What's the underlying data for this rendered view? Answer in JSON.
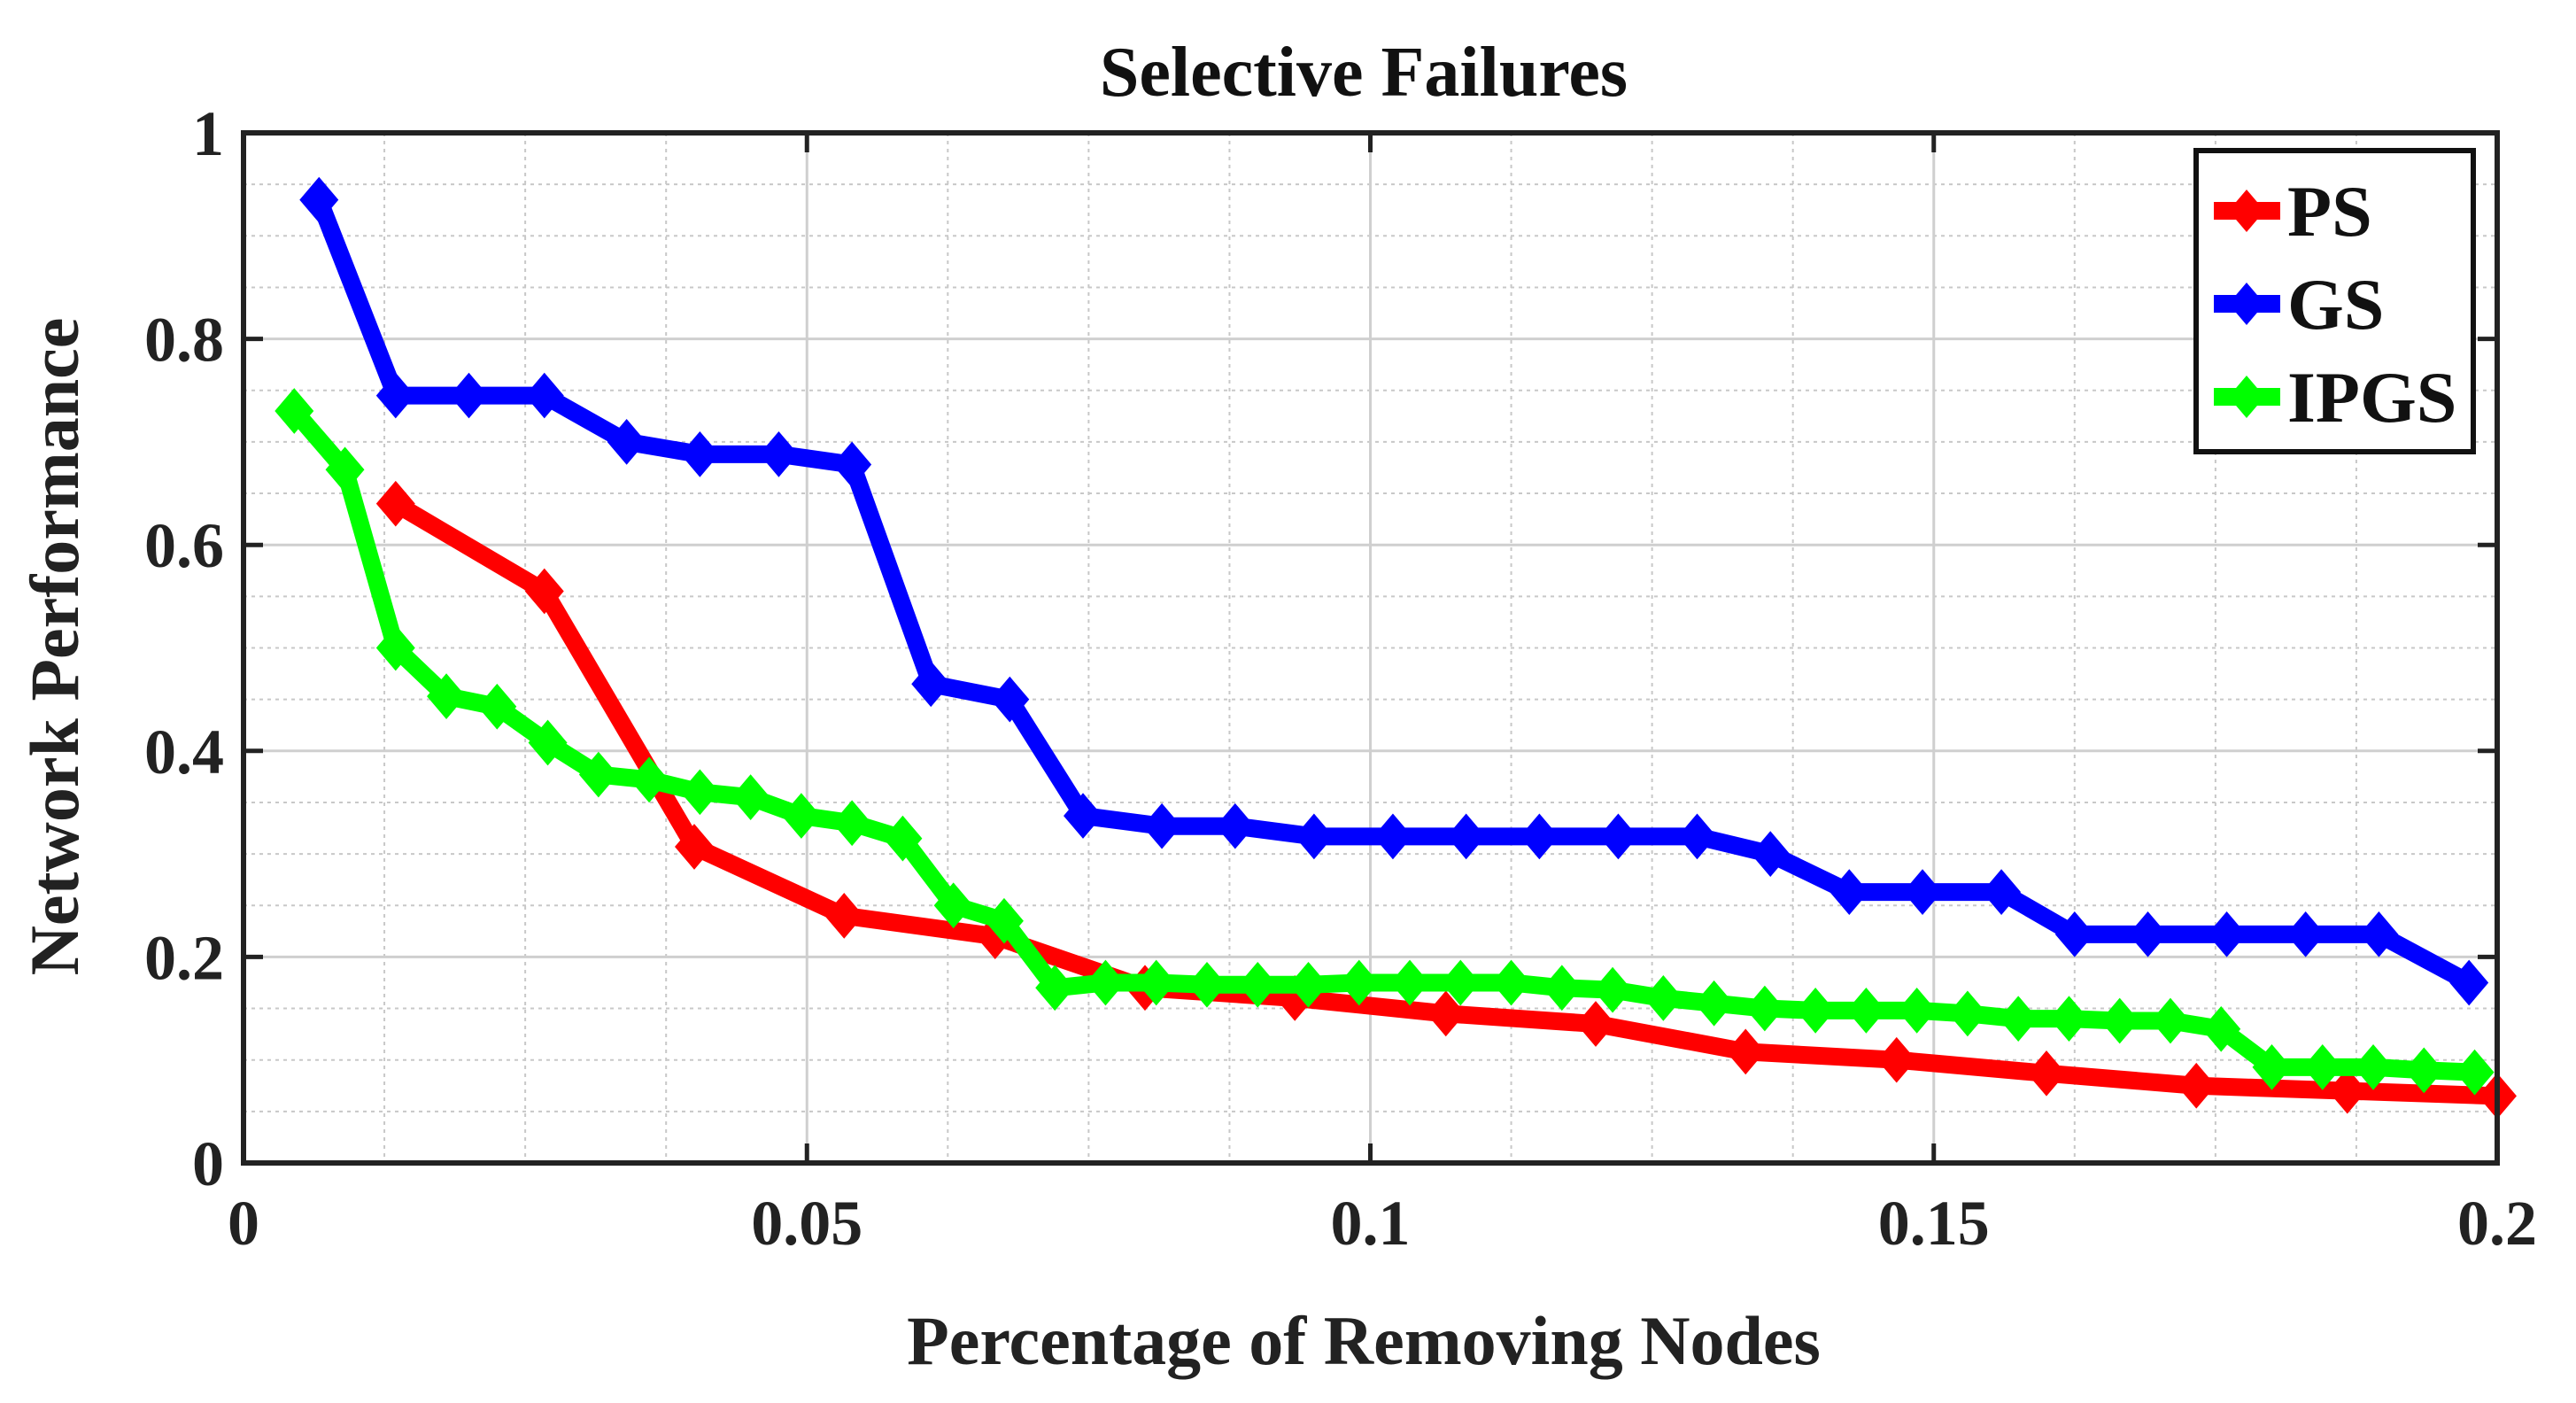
{
  "chart_data": {
    "type": "line",
    "title": "Selective Failures",
    "xlabel": "Percentage of Removing Nodes",
    "ylabel": "Network Performance",
    "xlim": [
      0,
      0.2
    ],
    "ylim": [
      0,
      1
    ],
    "xticks": [
      0,
      0.05,
      0.1,
      0.15,
      0.2
    ],
    "xtick_labels": [
      "0",
      "0.05",
      "0.1",
      "0.15",
      "0.2"
    ],
    "yticks": [
      0,
      0.2,
      0.4,
      0.6,
      0.8,
      1
    ],
    "ytick_labels": [
      "0",
      "0.2",
      "0.4",
      "0.6",
      "0.8",
      "1"
    ],
    "grid": true,
    "minor_grid": true,
    "legend_position": "top-right",
    "series": [
      {
        "name": "PS",
        "color": "#ff0000",
        "marker": "diamond",
        "x": [
          0.0135,
          0.0267,
          0.04,
          0.0533,
          0.0667,
          0.08,
          0.0933,
          0.1067,
          0.12,
          0.1333,
          0.1467,
          0.16,
          0.1733,
          0.1867,
          0.2
        ],
        "y": [
          0.64,
          0.555,
          0.307,
          0.24,
          0.22,
          0.17,
          0.16,
          0.145,
          0.135,
          0.108,
          0.1,
          0.087,
          0.075,
          0.07,
          0.065
        ]
      },
      {
        "name": "GS",
        "color": "#0000ff",
        "marker": "diamond",
        "x": [
          0.0067,
          0.0135,
          0.02,
          0.0267,
          0.034,
          0.0405,
          0.0475,
          0.054,
          0.061,
          0.068,
          0.0745,
          0.0815,
          0.088,
          0.095,
          0.102,
          0.1085,
          0.115,
          0.122,
          0.129,
          0.1355,
          0.1425,
          0.149,
          0.156,
          0.1625,
          0.169,
          0.176,
          0.183,
          0.1895,
          0.1975
        ],
        "y": [
          0.935,
          0.745,
          0.745,
          0.745,
          0.7,
          0.688,
          0.688,
          0.678,
          0.465,
          0.45,
          0.337,
          0.327,
          0.327,
          0.317,
          0.317,
          0.317,
          0.317,
          0.317,
          0.317,
          0.3,
          0.263,
          0.263,
          0.263,
          0.222,
          0.222,
          0.222,
          0.222,
          0.222,
          0.175
        ]
      },
      {
        "name": "IPGS",
        "color": "#00ff00",
        "marker": "diamond",
        "x": [
          0.0045,
          0.009,
          0.0135,
          0.018,
          0.0225,
          0.027,
          0.0315,
          0.036,
          0.0405,
          0.045,
          0.0495,
          0.054,
          0.0585,
          0.063,
          0.0675,
          0.072,
          0.0765,
          0.081,
          0.0855,
          0.09,
          0.0945,
          0.099,
          0.1035,
          0.108,
          0.1125,
          0.117,
          0.1215,
          0.126,
          0.1305,
          0.135,
          0.1395,
          0.144,
          0.1485,
          0.153,
          0.1575,
          0.162,
          0.1665,
          0.171,
          0.1755,
          0.18,
          0.1845,
          0.189,
          0.1935,
          0.198
        ],
        "y": [
          0.73,
          0.673,
          0.5,
          0.453,
          0.443,
          0.408,
          0.377,
          0.372,
          0.36,
          0.355,
          0.337,
          0.33,
          0.315,
          0.25,
          0.235,
          0.17,
          0.175,
          0.175,
          0.173,
          0.173,
          0.173,
          0.175,
          0.175,
          0.175,
          0.175,
          0.17,
          0.168,
          0.16,
          0.155,
          0.15,
          0.148,
          0.148,
          0.148,
          0.145,
          0.14,
          0.14,
          0.138,
          0.138,
          0.13,
          0.093,
          0.093,
          0.093,
          0.09,
          0.088
        ]
      }
    ]
  }
}
